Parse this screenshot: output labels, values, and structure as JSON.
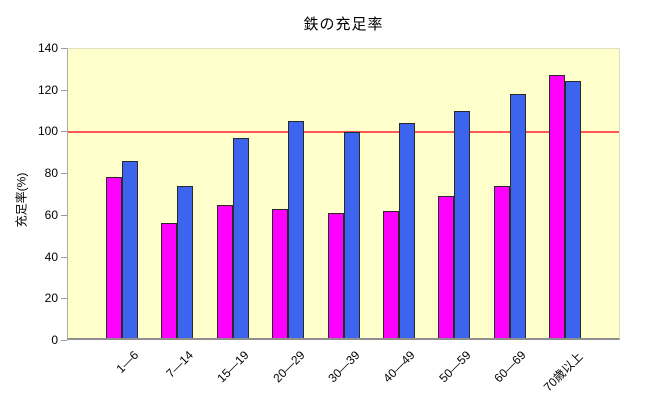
{
  "chart_data": {
    "type": "bar",
    "title": "鉄の充足率",
    "xlabel": "",
    "ylabel": "充足率(%)",
    "categories": [
      "1—6",
      "7—14",
      "15—19",
      "20—29",
      "30—39",
      "40—49",
      "50—59",
      "60—69",
      "70歳以上"
    ],
    "series": [
      {
        "name": "magenta",
        "color": "#ff00ff",
        "values": [
          77,
          55,
          64,
          62,
          60,
          61,
          68,
          73,
          126
        ]
      },
      {
        "name": "blue",
        "color": "#3c64ee",
        "values": [
          85,
          73,
          96,
          104,
          99,
          103,
          109,
          117,
          123
        ]
      }
    ],
    "ylim": [
      0,
      140
    ],
    "yticks": [
      0,
      20,
      40,
      60,
      80,
      100,
      120,
      140
    ],
    "reference_line": {
      "value": 100,
      "color": "#ff5555"
    },
    "plot_background": "#ffffcc",
    "grid": false,
    "legend": false
  },
  "colors": {
    "axis": "#9a9a9a",
    "text": "#000000"
  }
}
